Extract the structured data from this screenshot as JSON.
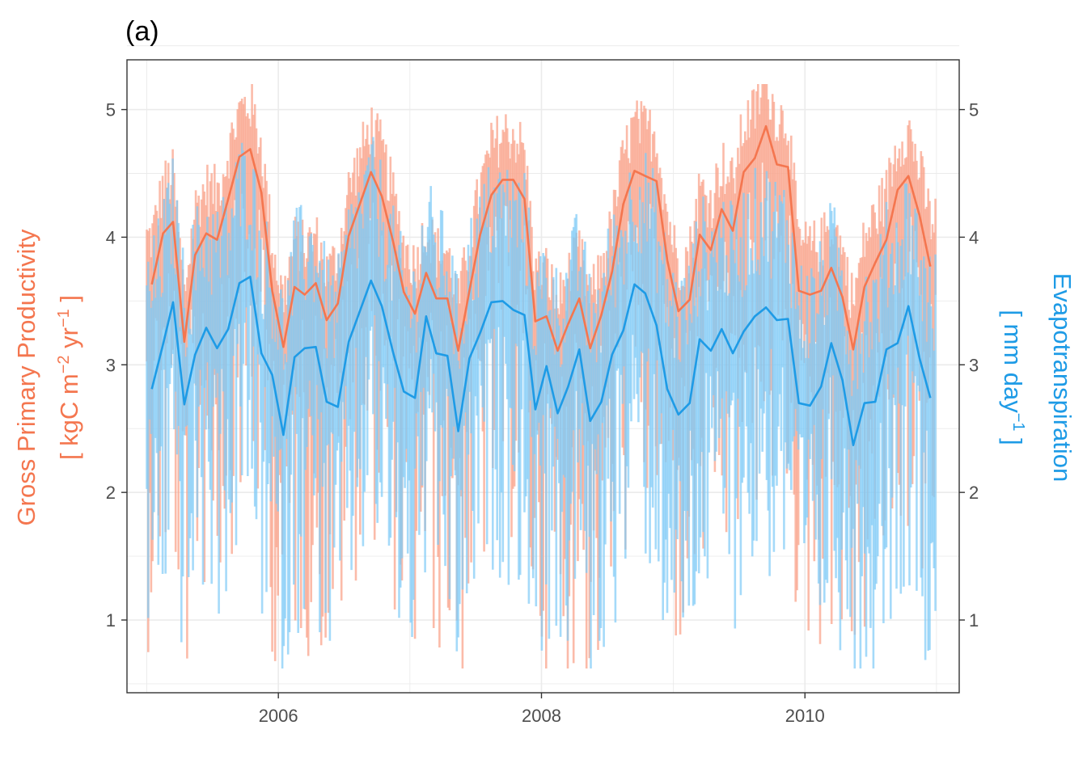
{
  "panel_label": "(a)",
  "colors": {
    "gpp": "#F4764F",
    "gpp_daily": "#F9A48C",
    "et": "#1E9BE6",
    "et_daily": "#7FCBF6",
    "grid": "#EBEBEB",
    "tick_text": "#4D4D4D"
  },
  "chart_data": {
    "type": "line",
    "x_axis": {
      "type": "date",
      "range": [
        "2004-11-07",
        "2011-03-05"
      ],
      "ticks": [
        "2006",
        "2008",
        "2010"
      ]
    },
    "y_left": {
      "label_line1": "Gross Primary Productivity",
      "label_line2_prefix": "[ kgC m",
      "label_line2_exp1": "−2",
      "label_line2_mid": " yr",
      "label_line2_exp2": "−1",
      "label_line2_suffix": " ]",
      "range": [
        0.43,
        5.39
      ],
      "ticks": [
        "1",
        "2",
        "3",
        "4",
        "5"
      ]
    },
    "y_right": {
      "label_line1": "Evapotranspiration",
      "label_line2_prefix": "[ mm day",
      "label_line2_exp": "−1",
      "label_line2_suffix": " ]",
      "range": [
        0.43,
        5.39
      ],
      "ticks": [
        "1",
        "2",
        "3",
        "4",
        "5"
      ]
    },
    "grid": true,
    "series": [
      {
        "key": "gpp_monthly",
        "x": [
          "2005-01-15",
          "2005-02-15",
          "2005-03-15",
          "2005-04-15",
          "2005-05-15",
          "2005-06-15",
          "2005-07-15",
          "2005-08-15",
          "2005-09-15",
          "2005-10-15",
          "2005-11-15",
          "2005-12-15",
          "2006-01-15",
          "2006-02-15",
          "2006-03-15",
          "2006-04-15",
          "2006-05-15",
          "2006-06-15",
          "2006-07-15",
          "2006-08-15",
          "2006-09-15",
          "2006-10-15",
          "2006-11-15",
          "2006-12-15",
          "2007-01-15",
          "2007-02-15",
          "2007-03-15",
          "2007-04-15",
          "2007-05-15",
          "2007-06-15",
          "2007-07-15",
          "2007-08-15",
          "2007-09-15",
          "2007-10-15",
          "2007-11-15",
          "2007-12-15",
          "2008-01-15",
          "2008-02-15",
          "2008-03-15",
          "2008-04-15",
          "2008-05-15",
          "2008-06-15",
          "2008-07-15",
          "2008-08-15",
          "2008-09-15",
          "2008-10-15",
          "2008-11-15",
          "2008-12-15",
          "2009-01-15",
          "2009-02-15",
          "2009-03-15",
          "2009-04-15",
          "2009-05-15",
          "2009-06-15",
          "2009-07-15",
          "2009-08-15",
          "2009-09-15",
          "2009-10-15",
          "2009-11-15",
          "2009-12-15",
          "2010-01-15",
          "2010-02-15",
          "2010-03-15",
          "2010-04-15",
          "2010-05-15",
          "2010-06-15",
          "2010-07-15",
          "2010-08-15",
          "2010-09-15",
          "2010-10-15",
          "2010-11-15",
          "2010-12-15"
        ],
        "values": [
          3.63,
          4.03,
          4.12,
          3.18,
          3.86,
          4.03,
          3.98,
          4.3,
          4.63,
          4.69,
          4.35,
          3.58,
          3.14,
          3.61,
          3.55,
          3.64,
          3.35,
          3.48,
          4.01,
          4.26,
          4.51,
          4.32,
          3.97,
          3.57,
          3.4,
          3.72,
          3.52,
          3.52,
          3.11,
          3.58,
          4.02,
          4.33,
          4.45,
          4.45,
          4.3,
          3.34,
          3.38,
          3.11,
          3.32,
          3.52,
          3.13,
          3.39,
          3.73,
          4.26,
          4.52,
          4.48,
          4.44,
          3.82,
          3.42,
          3.51,
          4.02,
          3.9,
          4.22,
          4.05,
          4.51,
          4.62,
          4.87,
          4.57,
          4.55,
          3.58,
          3.55,
          3.58,
          3.76,
          3.53,
          3.12,
          3.61,
          3.8,
          3.98,
          4.37,
          4.48,
          4.17,
          3.77
        ]
      },
      {
        "key": "et_monthly",
        "x": [
          "2005-01-15",
          "2005-02-15",
          "2005-03-15",
          "2005-04-15",
          "2005-05-15",
          "2005-06-15",
          "2005-07-15",
          "2005-08-15",
          "2005-09-15",
          "2005-10-15",
          "2005-11-15",
          "2005-12-15",
          "2006-01-15",
          "2006-02-15",
          "2006-03-15",
          "2006-04-15",
          "2006-05-15",
          "2006-06-15",
          "2006-07-15",
          "2006-08-15",
          "2006-09-15",
          "2006-10-15",
          "2006-11-15",
          "2006-12-15",
          "2007-01-15",
          "2007-02-15",
          "2007-03-15",
          "2007-04-15",
          "2007-05-15",
          "2007-06-15",
          "2007-07-15",
          "2007-08-15",
          "2007-09-15",
          "2007-10-15",
          "2007-11-15",
          "2007-12-15",
          "2008-01-15",
          "2008-02-15",
          "2008-03-15",
          "2008-04-15",
          "2008-05-15",
          "2008-06-15",
          "2008-07-15",
          "2008-08-15",
          "2008-09-15",
          "2008-10-15",
          "2008-11-15",
          "2008-12-15",
          "2009-01-15",
          "2009-02-15",
          "2009-03-15",
          "2009-04-15",
          "2009-05-15",
          "2009-06-15",
          "2009-07-15",
          "2009-08-15",
          "2009-09-15",
          "2009-10-15",
          "2009-11-15",
          "2009-12-15",
          "2010-01-15",
          "2010-02-15",
          "2010-03-15",
          "2010-04-15",
          "2010-05-15",
          "2010-06-15",
          "2010-07-15",
          "2010-08-15",
          "2010-09-15",
          "2010-10-15",
          "2010-11-15",
          "2010-12-15"
        ],
        "values": [
          2.81,
          3.16,
          3.49,
          2.69,
          3.08,
          3.29,
          3.13,
          3.28,
          3.64,
          3.69,
          3.09,
          2.92,
          2.45,
          3.06,
          3.13,
          3.14,
          2.71,
          2.67,
          3.18,
          3.42,
          3.66,
          3.46,
          3.1,
          2.79,
          2.74,
          3.38,
          3.09,
          3.07,
          2.48,
          3.05,
          3.25,
          3.49,
          3.5,
          3.43,
          3.39,
          2.65,
          2.99,
          2.62,
          2.83,
          3.12,
          2.56,
          2.71,
          3.08,
          3.27,
          3.63,
          3.56,
          3.31,
          2.81,
          2.61,
          2.7,
          3.2,
          3.11,
          3.28,
          3.09,
          3.26,
          3.38,
          3.45,
          3.35,
          3.36,
          2.7,
          2.68,
          2.83,
          3.17,
          2.88,
          2.37,
          2.7,
          2.71,
          3.12,
          3.17,
          3.46,
          3.05,
          2.74
        ]
      },
      {
        "key": "gpp_daily",
        "x_range": [
          "2005-01-01",
          "2010-12-31"
        ],
        "x_step_days": 4,
        "amplitude_note": "approx. 0.6 to 5.2"
      },
      {
        "key": "et_daily",
        "x_range": [
          "2005-01-01",
          "2010-12-31"
        ],
        "x_step_days": 4,
        "amplitude_note": "approx. 0.8 to 5.1"
      }
    ]
  }
}
